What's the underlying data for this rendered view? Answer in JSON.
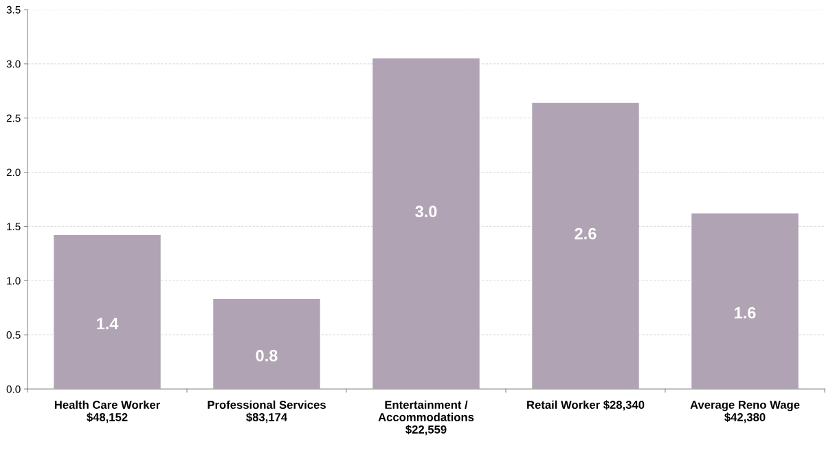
{
  "chart_data": {
    "type": "bar",
    "categories": [
      "Health Care Worker\n$48,152",
      "Professional Services\n$83,174",
      "Entertainment /\nAccommodations\n$22,559",
      "Retail Worker $28,340",
      "Average Reno Wage\n$42,380"
    ],
    "values": [
      1.42,
      0.83,
      3.05,
      2.64,
      1.62
    ],
    "value_labels": [
      "1.4",
      "0.8",
      "3.0",
      "2.6",
      "1.6"
    ],
    "color": "#b0a4b4",
    "ylim": [
      0,
      3.5
    ],
    "yticks": [
      {
        "value": 0,
        "label": "0.0"
      },
      {
        "value": 0.5,
        "label": "0.5"
      },
      {
        "value": 1,
        "label": "1.0"
      },
      {
        "value": 1.5,
        "label": "1.5"
      },
      {
        "value": 2,
        "label": "2.0"
      },
      {
        "value": 2.5,
        "label": "2.5"
      },
      {
        "value": 3,
        "label": "3.0"
      },
      {
        "value": 3.5,
        "label": "3.5"
      }
    ],
    "grid": "y",
    "legend": false
  }
}
